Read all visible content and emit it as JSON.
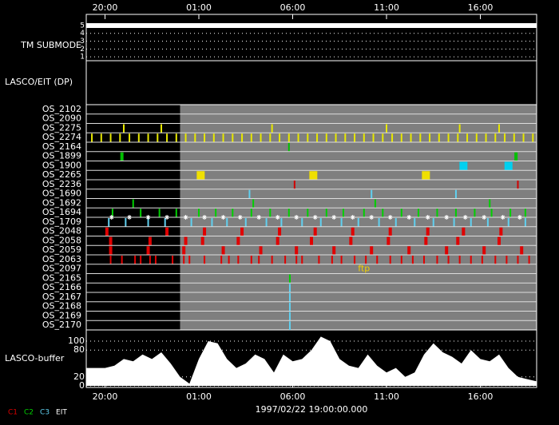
{
  "chart_data": {
    "type": "timeline",
    "xlim": [
      0,
      24
    ],
    "xticks": [
      {
        "value": 1,
        "label": "20:00"
      },
      {
        "value": 6,
        "label": "01:00"
      },
      {
        "value": 11,
        "label": "06:00"
      },
      {
        "value": 16,
        "label": "11:00"
      },
      {
        "value": 21,
        "label": "16:00"
      }
    ],
    "x_label": "1997/02/22 19:00:00.000",
    "active_range": [
      5,
      24
    ],
    "submode": {
      "label": "TM SUBMODE",
      "ylim": [
        0.5,
        5.2
      ],
      "yticks": [
        1,
        2,
        3,
        4,
        5
      ],
      "x": [
        0,
        24
      ],
      "values": [
        5,
        5
      ],
      "color": "#ffffff"
    },
    "panel_label": "LASCO/EIT (DP)",
    "rows": [
      {
        "name": "OS_2102"
      },
      {
        "name": "OS_2090"
      },
      {
        "name": "OS_2275",
        "color": "#e8e800",
        "mark": "line",
        "times": [
          2.0,
          4.0,
          9.9,
          16.0,
          19.9,
          22.0
        ]
      },
      {
        "name": "OS_2274",
        "color": "#e8e800",
        "mark": "line",
        "times": [
          0.3,
          0.8,
          1.3,
          1.8,
          2.3,
          2.8,
          3.3,
          3.8,
          4.3,
          4.8,
          5.3,
          5.8,
          6.3,
          6.8,
          7.3,
          7.8,
          8.3,
          8.8,
          9.3,
          9.8,
          10.3,
          10.8,
          11.3,
          11.8,
          12.3,
          12.8,
          13.3,
          13.8,
          14.3,
          14.8,
          15.3,
          15.8,
          16.3,
          16.8,
          17.3,
          17.8,
          18.3,
          18.8,
          19.3,
          19.8,
          20.3,
          20.8,
          21.3,
          21.8,
          22.3,
          22.8,
          23.3,
          23.8
        ]
      },
      {
        "name": "OS_2164",
        "color": "#00c000",
        "mark": "line",
        "times": [
          10.8
        ]
      },
      {
        "name": "OS_1899",
        "color": "#00c000",
        "mark": "thick",
        "times": [
          1.9,
          22.9
        ]
      },
      {
        "name": "OS_1900",
        "color": "#00d0f0",
        "mark": "box",
        "times": [
          20.1,
          22.5
        ]
      },
      {
        "name": "OS_2265",
        "color": "#f0e000",
        "mark": "box",
        "times": [
          6.1,
          12.1,
          18.1
        ]
      },
      {
        "name": "OS_2236",
        "color": "#d00000",
        "mark": "line",
        "times": [
          11.1,
          23.0
        ]
      },
      {
        "name": "OS_1690",
        "color": "#60d0f0",
        "mark": "line",
        "times": [
          8.7,
          15.2,
          19.7
        ]
      },
      {
        "name": "OS_1692",
        "color": "#00d000",
        "mark": "line",
        "times": [
          2.5,
          8.9,
          15.4,
          21.5
        ]
      },
      {
        "name": "OS_1694",
        "color": "#00d000",
        "mark": "line",
        "times": [
          1.4,
          2.9,
          3.9,
          4.8,
          6.0,
          6.9,
          7.8,
          8.8,
          9.8,
          10.8,
          11.8,
          12.8,
          13.7,
          14.8,
          15.8,
          16.8,
          17.7,
          18.7,
          19.7,
          20.7,
          21.6,
          22.6,
          23.4
        ]
      },
      {
        "name": "OS_1709",
        "color": "#60d0f0",
        "mark": "line",
        "times": [
          1.2,
          2.1,
          3.3,
          4.2,
          5.6,
          6.7,
          7.5,
          8.5,
          9.6,
          10.4,
          11.5,
          12.5,
          13.6,
          14.5,
          15.6,
          16.5,
          17.5,
          18.5,
          19.6,
          20.5,
          21.4,
          22.5,
          23.4
        ],
        "stars": [
          1.35,
          2.3,
          3.3,
          4.3,
          5.3,
          6.3,
          7.3,
          8.2,
          9.2,
          10.2,
          11.2,
          12.2,
          13.2,
          14.2,
          15.2,
          16.2,
          17.2,
          18.2,
          19.2,
          20.2,
          21.2,
          22.2,
          23.1
        ]
      },
      {
        "name": "OS_2048",
        "color": "#e00000",
        "mark": "thick",
        "times": [
          1.1,
          4.3,
          6.3,
          8.3,
          10.3,
          12.2,
          14.2,
          16.2,
          18.2,
          20.1,
          22.1
        ]
      },
      {
        "name": "OS_2058",
        "color": "#e00000",
        "mark": "thick",
        "times": [
          1.3,
          3.4,
          5.3,
          6.2,
          8.1,
          10.2,
          12.0,
          14.1,
          16.1,
          18.1,
          19.8,
          22.0
        ]
      },
      {
        "name": "OS_2059",
        "color": "#e00000",
        "mark": "thick",
        "times": [
          1.3,
          3.3,
          5.2,
          7.3,
          9.3,
          11.2,
          13.2,
          15.2,
          17.2,
          19.2,
          21.2,
          23.2
        ]
      },
      {
        "name": "OS_2063",
        "color": "#e00000",
        "mark": "line",
        "times": [
          1.3,
          1.9,
          2.6,
          2.9,
          3.4,
          3.7,
          4.6,
          5.2,
          5.5,
          6.3,
          7.2,
          7.6,
          8.1,
          8.8,
          9.2,
          9.9,
          10.6,
          11.2,
          11.5,
          12.4,
          13.1,
          13.6,
          14.3,
          14.9,
          15.5,
          16.2,
          16.8,
          17.4,
          18.0,
          18.7,
          19.3,
          19.9,
          20.5,
          21.1,
          21.8,
          22.4,
          23.0,
          23.6
        ]
      },
      {
        "name": "OS_2097",
        "color": "#f0d000",
        "annotation": {
          "time": 14.8,
          "text": "ftp"
        }
      },
      {
        "name": "OS_2165",
        "color": "#00d000",
        "mark": "line",
        "times": [
          10.85
        ]
      },
      {
        "name": "OS_2166",
        "color": "#60d0f0",
        "mark": "line",
        "times": [
          10.85
        ]
      },
      {
        "name": "OS_2167",
        "color": "#60d0f0",
        "mark": "line",
        "times": [
          10.85
        ]
      },
      {
        "name": "OS_2168",
        "color": "#60d0f0",
        "mark": "line",
        "times": [
          10.85
        ]
      },
      {
        "name": "OS_2169",
        "color": "#60d0f0",
        "mark": "line",
        "times": [
          10.85
        ]
      },
      {
        "name": "OS_2170",
        "color": "#60d0f0",
        "mark": "line",
        "times": [
          10.85
        ]
      }
    ],
    "buffer": {
      "label": "LASCO-buffer",
      "ylim": [
        0,
        125
      ],
      "yticks": [
        0,
        20,
        80,
        100
      ],
      "color": "#ffffff",
      "x": [
        0,
        0.5,
        1,
        1.5,
        2,
        2.5,
        3,
        3.5,
        4,
        4.5,
        5,
        5.5,
        6,
        6.5,
        7,
        7.5,
        8,
        8.5,
        9,
        9.5,
        10,
        10.5,
        11,
        11.5,
        12,
        12.5,
        13,
        13.5,
        14,
        14.5,
        15,
        15.5,
        16,
        16.5,
        17,
        17.5,
        18,
        18.5,
        19,
        19.5,
        20,
        20.5,
        21,
        21.5,
        22,
        22.5,
        23,
        23.5,
        24
      ],
      "values": [
        40,
        40,
        40,
        45,
        60,
        55,
        70,
        60,
        75,
        50,
        20,
        5,
        60,
        100,
        95,
        60,
        40,
        50,
        70,
        60,
        30,
        70,
        55,
        60,
        80,
        110,
        100,
        60,
        45,
        40,
        70,
        45,
        30,
        40,
        20,
        30,
        70,
        95,
        75,
        65,
        50,
        80,
        60,
        55,
        70,
        40,
        20,
        15,
        10
      ]
    },
    "legend": [
      {
        "name": "C1",
        "color": "#e00000"
      },
      {
        "name": "C2",
        "color": "#00d000"
      },
      {
        "name": "C3",
        "color": "#60d0f0"
      },
      {
        "name": "EIT",
        "color": "#ffffff"
      }
    ]
  }
}
